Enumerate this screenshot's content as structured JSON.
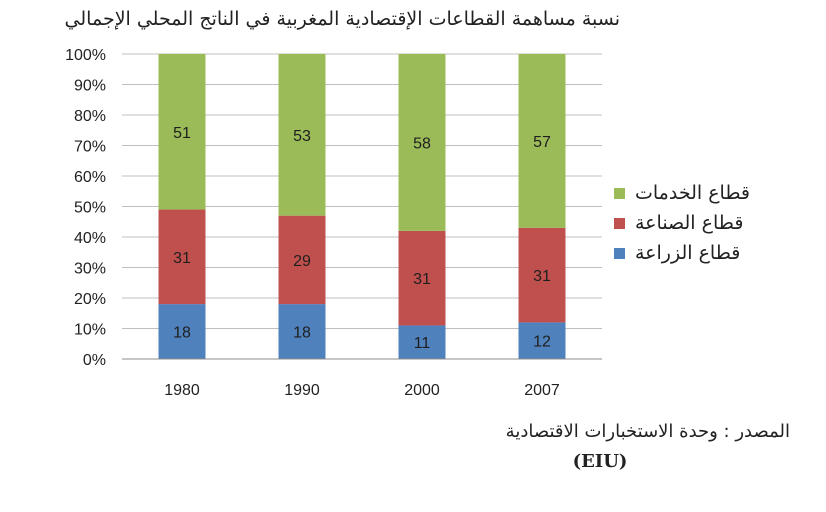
{
  "chart_data": {
    "type": "bar",
    "stacked": true,
    "title": "نسبة مساهمة القطاعات الإقتصادية المغربية في الناتج المحلي الإجمالي",
    "categories": [
      "1980",
      "1990",
      "2000",
      "2007"
    ],
    "series": [
      {
        "name": "قطاع الزراعة",
        "values": [
          18,
          18,
          11,
          12
        ],
        "color": "#4f81bd"
      },
      {
        "name": "قطاع الصناعة",
        "values": [
          31,
          29,
          31,
          31
        ],
        "color": "#c0504d"
      },
      {
        "name": "قطاع الخدمات",
        "values": [
          51,
          53,
          58,
          57
        ],
        "color": "#9bbb59"
      }
    ],
    "legend_order": [
      2,
      1,
      0
    ],
    "ylim": [
      0,
      100
    ],
    "yticks": [
      0,
      10,
      20,
      30,
      40,
      50,
      60,
      70,
      80,
      90,
      100
    ],
    "ytick_labels": [
      "0%",
      "10%",
      "20%",
      "30%",
      "40%",
      "50%",
      "60%",
      "70%",
      "80%",
      "90%",
      "100%"
    ],
    "grid": true,
    "legend_position": "right"
  },
  "source": {
    "line1": "المصدر : وحدة الاستخبارات الاقتصادية",
    "line2": "(EIU)"
  }
}
